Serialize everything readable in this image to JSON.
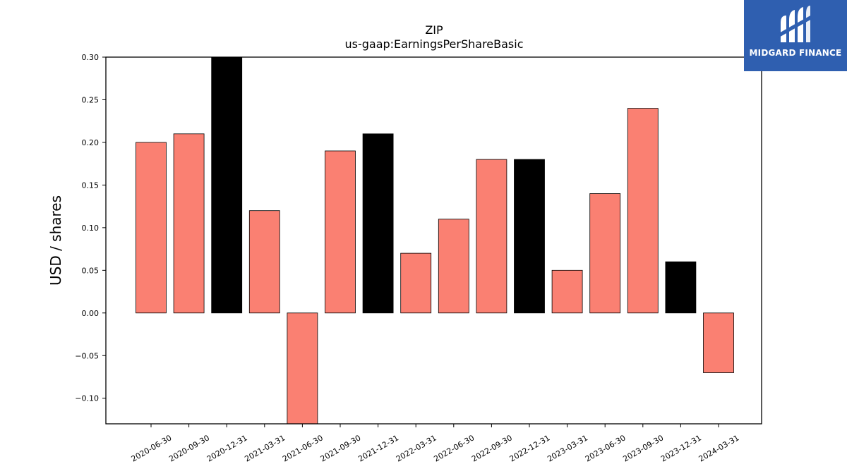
{
  "brand": {
    "name": "MIDGARD FINANCE",
    "logo_icon": "midgard-m-logo-icon",
    "background_color": "#2f5fb0"
  },
  "colors": {
    "positive_bar": "#fa8072",
    "highlight_bar": "#000000",
    "bar_edge": "#000000"
  },
  "chart_data": {
    "type": "bar",
    "title": "ZIP",
    "subtitle": "us-gaap:EarningsPerShareBasic",
    "xlabel": "",
    "ylabel": "USD / shares",
    "ylim": [
      -0.13,
      0.3
    ],
    "yticks": [
      0.3,
      0.25,
      0.2,
      0.15,
      0.1,
      0.05,
      0.0,
      -0.05,
      -0.1
    ],
    "ytick_labels": [
      "0.30",
      "0.25",
      "0.20",
      "0.15",
      "0.10",
      "0.05",
      "0.00",
      "−0.05",
      "−0.10"
    ],
    "categories": [
      "2020-06-30",
      "2020-09-30",
      "2020-12-31",
      "2021-03-31",
      "2021-06-30",
      "2021-09-30",
      "2021-12-31",
      "2022-03-31",
      "2022-06-30",
      "2022-09-30",
      "2022-12-31",
      "2023-03-31",
      "2023-06-30",
      "2023-09-30",
      "2023-12-31",
      "2024-03-31"
    ],
    "values": [
      0.2,
      0.21,
      0.3,
      0.12,
      -0.13,
      0.19,
      0.21,
      0.07,
      0.11,
      0.18,
      0.18,
      0.05,
      0.14,
      0.24,
      0.06,
      -0.07
    ],
    "bar_colors": [
      "salmon",
      "salmon",
      "black",
      "salmon",
      "salmon",
      "salmon",
      "black",
      "salmon",
      "salmon",
      "salmon",
      "black",
      "salmon",
      "salmon",
      "salmon",
      "black",
      "salmon"
    ],
    "grid": false,
    "legend": "none"
  }
}
